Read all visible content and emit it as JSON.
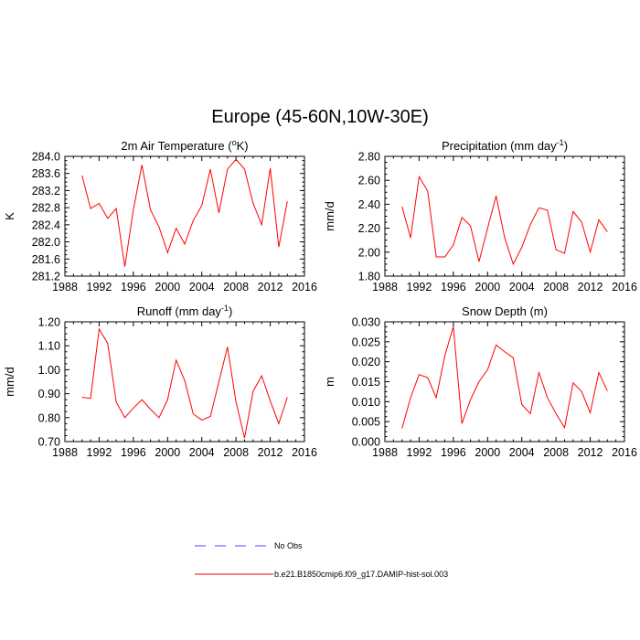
{
  "figure": {
    "title": "Europe (45-60N,10W-30E)"
  },
  "legend": {
    "entries": [
      {
        "label": "No Obs",
        "color": "#4a4aff",
        "style": "dashed"
      },
      {
        "label": "b.e21.B1850cmip6.f09_g17.DAMIP-hist-sol.003",
        "color": "#ff0000",
        "style": "solid"
      }
    ]
  },
  "chart_data": [
    {
      "type": "line",
      "title": "2m Air Temperature (",
      "title_sup": "o",
      "title_tail": "K)",
      "ylabel": "K",
      "xlim": [
        1988,
        2016
      ],
      "ylim": [
        281.2,
        284.0
      ],
      "xticks": [
        1988,
        1992,
        1996,
        2000,
        2004,
        2008,
        2012,
        2016
      ],
      "xtick_labels": [
        "1988",
        "1992",
        "1996",
        "2000",
        "2004",
        "2008",
        "2012",
        "2016"
      ],
      "yticks": [
        281.2,
        281.6,
        282.0,
        282.4,
        282.8,
        283.2,
        283.6,
        284.0
      ],
      "ytick_labels": [
        "281.2",
        "281.6",
        "282.0",
        "282.4",
        "282.8",
        "283.2",
        "283.6",
        "284.0"
      ],
      "series": [
        {
          "color": "#ff0000",
          "x": [
            1990,
            1991,
            1992,
            1993,
            1994,
            1995,
            1996,
            1997,
            1998,
            1999,
            2000,
            2001,
            2002,
            2003,
            2004,
            2005,
            2006,
            2007,
            2008,
            2009,
            2010,
            2011,
            2012,
            2013,
            2014
          ],
          "y": [
            283.55,
            282.78,
            282.9,
            282.55,
            282.78,
            281.42,
            282.75,
            283.8,
            282.75,
            282.35,
            281.75,
            282.32,
            281.95,
            282.5,
            282.85,
            283.7,
            282.68,
            283.7,
            283.93,
            283.7,
            282.9,
            282.4,
            283.72,
            281.88,
            282.95
          ]
        }
      ]
    },
    {
      "type": "line",
      "title": "Precipitation (mm day",
      "title_sup": "-1",
      "title_tail": ")",
      "ylabel": "mm/d",
      "xlim": [
        1988,
        2016
      ],
      "ylim": [
        1.8,
        2.8
      ],
      "xticks": [
        1988,
        1992,
        1996,
        2000,
        2004,
        2008,
        2012,
        2016
      ],
      "xtick_labels": [
        "1988",
        "1992",
        "1996",
        "2000",
        "2004",
        "2008",
        "2012",
        "2016"
      ],
      "yticks": [
        1.8,
        2.0,
        2.2,
        2.4,
        2.6,
        2.8
      ],
      "ytick_labels": [
        "1.80",
        "2.00",
        "2.20",
        "2.40",
        "2.60",
        "2.80"
      ],
      "series": [
        {
          "color": "#ff0000",
          "x": [
            1990,
            1991,
            1992,
            1993,
            1994,
            1995,
            1996,
            1997,
            1998,
            1999,
            2000,
            2001,
            2002,
            2003,
            2004,
            2005,
            2006,
            2007,
            2008,
            2009,
            2010,
            2011,
            2012,
            2013,
            2014
          ],
          "y": [
            2.38,
            2.12,
            2.63,
            2.51,
            1.96,
            1.96,
            2.06,
            2.29,
            2.22,
            1.92,
            2.2,
            2.47,
            2.12,
            1.9,
            2.04,
            2.23,
            2.37,
            2.35,
            2.02,
            1.99,
            2.34,
            2.25,
            2.0,
            2.27,
            2.17
          ]
        }
      ]
    },
    {
      "type": "line",
      "title": "Runoff (mm day",
      "title_sup": "-1",
      "title_tail": ")",
      "ylabel": "mm/d",
      "xlim": [
        1988,
        2016
      ],
      "ylim": [
        0.7,
        1.2
      ],
      "xticks": [
        1988,
        1992,
        1996,
        2000,
        2004,
        2008,
        2012,
        2016
      ],
      "xtick_labels": [
        "1988",
        "1992",
        "1996",
        "2000",
        "2004",
        "2008",
        "2012",
        "2016"
      ],
      "yticks": [
        0.7,
        0.8,
        0.9,
        1.0,
        1.1,
        1.2
      ],
      "ytick_labels": [
        "0.70",
        "0.80",
        "0.90",
        "1.00",
        "1.10",
        "1.20"
      ],
      "series": [
        {
          "color": "#ff0000",
          "x": [
            1990,
            1991,
            1992,
            1993,
            1994,
            1995,
            1996,
            1997,
            1998,
            1999,
            2000,
            2001,
            2002,
            2003,
            2004,
            2005,
            2006,
            2007,
            2008,
            2009,
            2010,
            2011,
            2012,
            2013,
            2014
          ],
          "y": [
            0.885,
            0.88,
            1.17,
            1.11,
            0.865,
            0.8,
            0.84,
            0.875,
            0.835,
            0.8,
            0.875,
            1.04,
            0.955,
            0.815,
            0.79,
            0.805,
            0.95,
            1.095,
            0.865,
            0.715,
            0.91,
            0.975,
            0.87,
            0.775,
            0.885
          ]
        }
      ]
    },
    {
      "type": "line",
      "title": "Snow Depth (m)",
      "title_sup": "",
      "title_tail": "",
      "ylabel": "m",
      "xlim": [
        1988,
        2016
      ],
      "ylim": [
        0.0,
        0.03
      ],
      "xticks": [
        1988,
        1992,
        1996,
        2000,
        2004,
        2008,
        2012,
        2016
      ],
      "xtick_labels": [
        "1988",
        "1992",
        "1996",
        "2000",
        "2004",
        "2008",
        "2012",
        "2016"
      ],
      "yticks": [
        0.0,
        0.005,
        0.01,
        0.015,
        0.02,
        0.025,
        0.03
      ],
      "ytick_labels": [
        "0.000",
        "0.005",
        "0.010",
        "0.015",
        "0.020",
        "0.025",
        "0.030"
      ],
      "series": [
        {
          "color": "#ff0000",
          "x": [
            1990,
            1991,
            1992,
            1993,
            1994,
            1995,
            1996,
            1997,
            1998,
            1999,
            2000,
            2001,
            2002,
            2003,
            2004,
            2005,
            2006,
            2007,
            2008,
            2009,
            2010,
            2011,
            2012,
            2013,
            2014
          ],
          "y": [
            0.0033,
            0.011,
            0.0168,
            0.016,
            0.011,
            0.0215,
            0.0288,
            0.0045,
            0.0105,
            0.015,
            0.018,
            0.0242,
            0.0225,
            0.021,
            0.0093,
            0.007,
            0.0173,
            0.011,
            0.007,
            0.0035,
            0.0147,
            0.0125,
            0.0072,
            0.0173,
            0.0127
          ]
        }
      ]
    }
  ]
}
